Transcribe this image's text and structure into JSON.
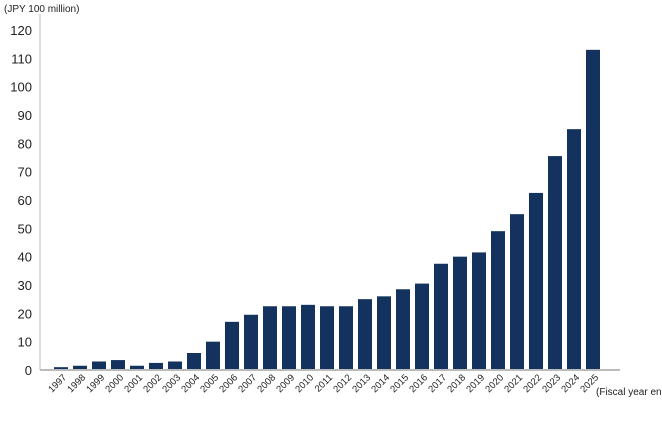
{
  "chart_data": {
    "type": "bar",
    "title": "",
    "ylabel": "(JPY 100 million)",
    "xlabel": "(Fiscal year end)",
    "ylim": [
      0,
      120
    ],
    "yticks": [
      0,
      10,
      20,
      30,
      40,
      50,
      60,
      70,
      80,
      90,
      100,
      110,
      120
    ],
    "grid": false,
    "categories": [
      "1997",
      "1998",
      "1999",
      "2000",
      "2001",
      "2002",
      "2003",
      "2004",
      "2005",
      "2006",
      "2007",
      "2008",
      "2009",
      "2010",
      "2011",
      "2012",
      "2013",
      "2014",
      "2015",
      "2016",
      "2017",
      "2018",
      "2019",
      "2020",
      "2021",
      "2022",
      "2023",
      "2024",
      "2025"
    ],
    "values": [
      1,
      1.5,
      3,
      3.5,
      1.5,
      2.5,
      3,
      6,
      10,
      17,
      19.5,
      22.5,
      22.5,
      23,
      22.5,
      22.5,
      25,
      26,
      28.5,
      30.5,
      37.5,
      40,
      41.5,
      49,
      55,
      62.5,
      75.5,
      85,
      113
    ],
    "colors": {
      "bar": "#14325e",
      "axis": "#bbbbbb",
      "text": "#222222"
    }
  }
}
